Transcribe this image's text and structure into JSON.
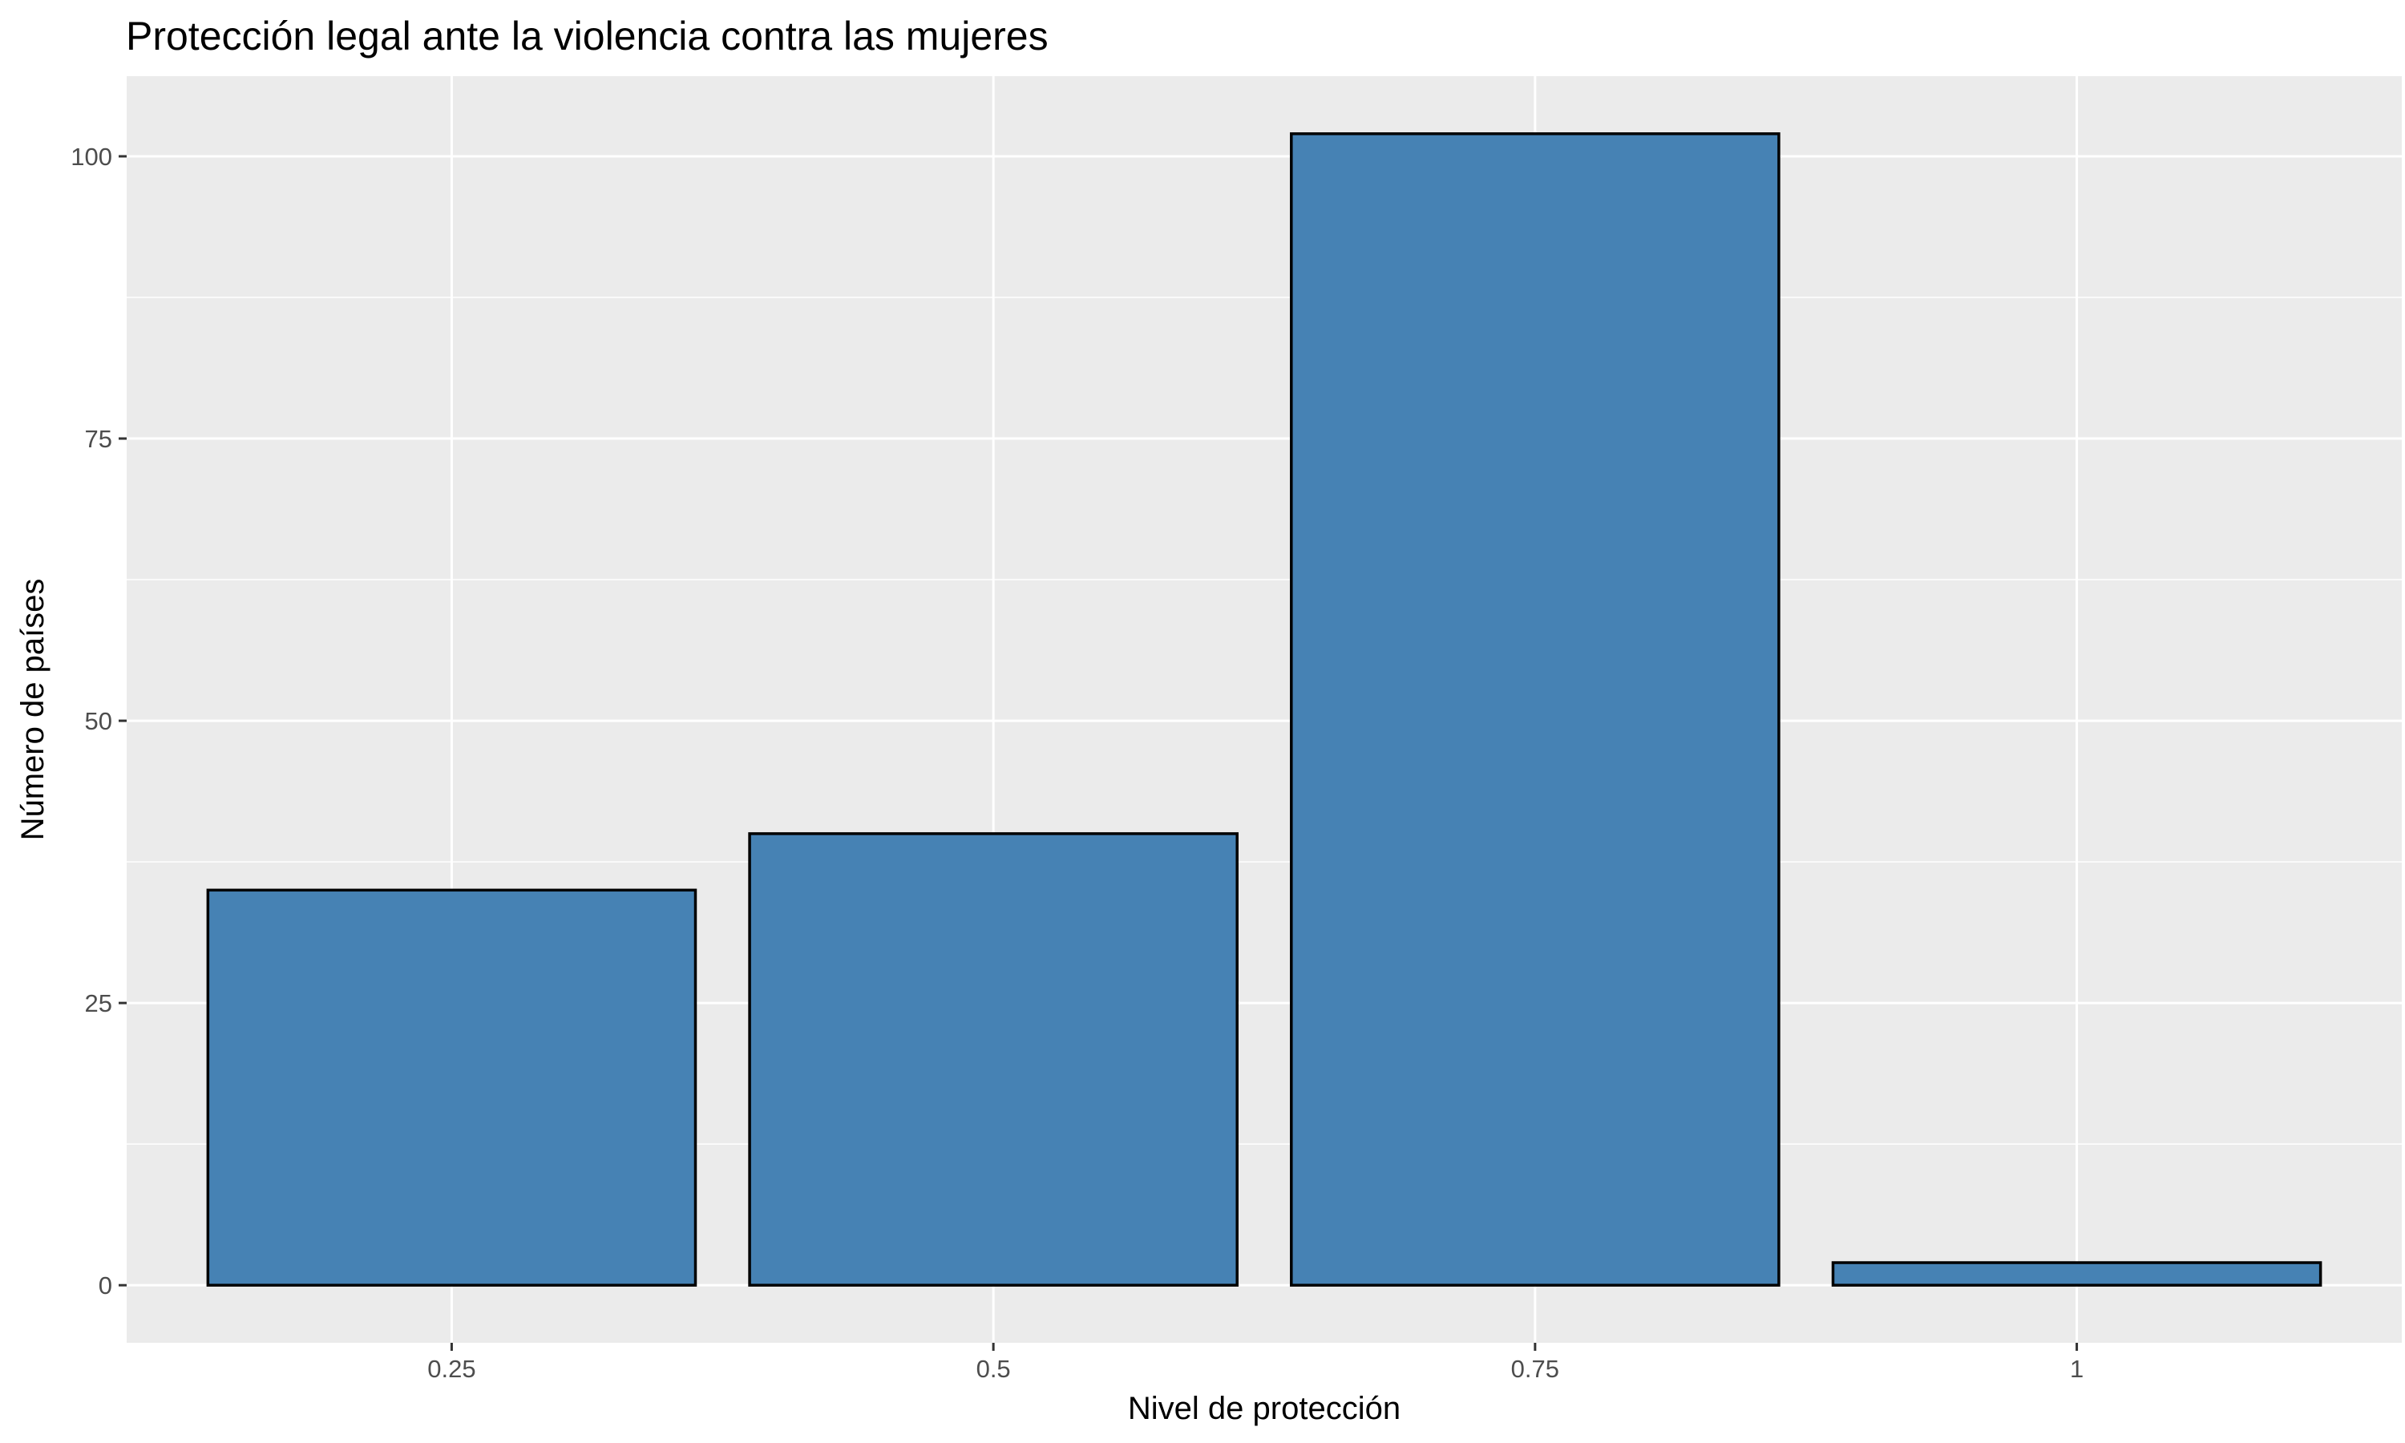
{
  "chart_data": {
    "type": "bar",
    "title": "Protección legal ante la violencia contra las mujeres",
    "xlabel": "Nivel de protección",
    "ylabel": "Número de países",
    "categories": [
      "0.25",
      "0.5",
      "0.75",
      "1"
    ],
    "values": [
      35,
      40,
      102,
      2
    ],
    "ylim": [
      -5.1,
      107.1
    ],
    "yticks": [
      "0",
      "25",
      "50",
      "75",
      "100"
    ],
    "grid": true,
    "legend": "none",
    "colors": {
      "bar_fill": "#4682B4",
      "bar_stroke": "#000000",
      "panel_background": "#EBEBEB",
      "grid": "#FFFFFF"
    }
  }
}
